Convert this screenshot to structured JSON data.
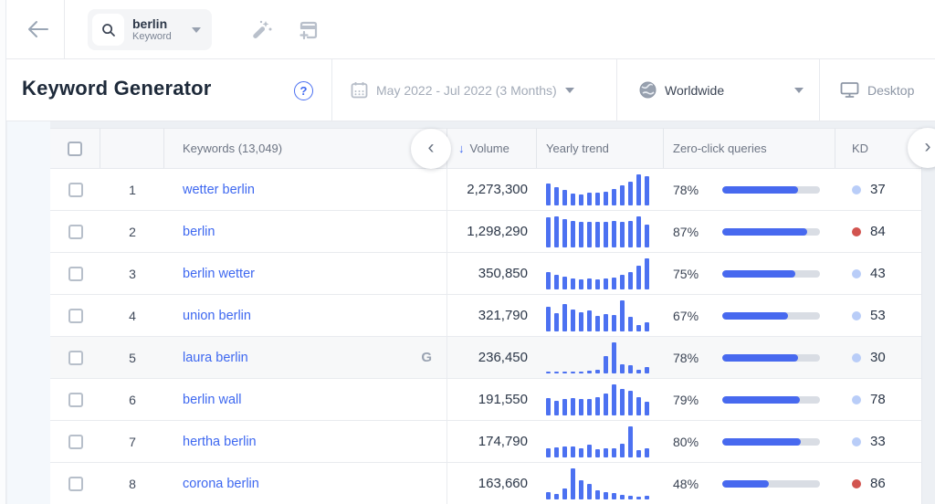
{
  "topbar": {
    "seed": {
      "query": "berlin",
      "type_label": "Keyword"
    }
  },
  "header": {
    "title": "Keyword Generator",
    "date_range": "May 2022 - Jul 2022 (3 Months)",
    "region": "Worldwide",
    "device": "Desktop"
  },
  "icons": {
    "back": "←",
    "help": "?",
    "sort_desc": "↓",
    "scroll_left": "‹",
    "scroll_right": "›",
    "serp_feature": "G"
  },
  "colors": {
    "accent": "#3f69f0",
    "trend_bar": "#4c71f1",
    "progress_fill": "#4769ef",
    "progress_track": "#d9dde4",
    "kd_easy_dot": "#b9cdf8",
    "kd_hard_dot": "#d2544f"
  },
  "table": {
    "columns": {
      "keywords": "Keywords (13,049)",
      "volume": "Volume",
      "trend": "Yearly trend",
      "zero_click": "Zero-click queries",
      "kd": "KD"
    },
    "rows": [
      {
        "rank": 1,
        "keyword": "wetter berlin",
        "volume": "2,273,300",
        "trend": [
          0.72,
          0.58,
          0.5,
          0.38,
          0.36,
          0.4,
          0.4,
          0.44,
          0.52,
          0.64,
          0.76,
          1.0,
          0.94
        ],
        "zero_click_pct": 78,
        "kd": 37,
        "kd_level": "easy",
        "serp_icon": false,
        "highlighted": false
      },
      {
        "rank": 2,
        "keyword": "berlin",
        "volume": "1,298,290",
        "trend": [
          0.96,
          1.0,
          0.9,
          0.86,
          0.82,
          0.82,
          0.82,
          0.82,
          0.86,
          0.82,
          0.86,
          1.0,
          0.74
        ],
        "zero_click_pct": 87,
        "kd": 84,
        "kd_level": "hard",
        "serp_icon": false,
        "highlighted": false
      },
      {
        "rank": 3,
        "keyword": "berlin wetter",
        "volume": "350,850",
        "trend": [
          0.55,
          0.48,
          0.4,
          0.34,
          0.32,
          0.34,
          0.32,
          0.34,
          0.38,
          0.46,
          0.56,
          0.76,
          1.0
        ],
        "zero_click_pct": 75,
        "kd": 43,
        "kd_level": "easy",
        "serp_icon": false,
        "highlighted": false
      },
      {
        "rank": 4,
        "keyword": "union berlin",
        "volume": "321,790",
        "trend": [
          0.78,
          0.6,
          0.88,
          0.7,
          0.62,
          0.68,
          0.5,
          0.56,
          0.52,
          1.0,
          0.48,
          0.22,
          0.3
        ],
        "zero_click_pct": 67,
        "kd": 53,
        "kd_level": "easy",
        "serp_icon": false,
        "highlighted": false
      },
      {
        "rank": 5,
        "keyword": "laura berlin",
        "volume": "236,450",
        "trend": [
          0.07,
          0.07,
          0.07,
          0.06,
          0.07,
          0.08,
          0.12,
          0.55,
          1.0,
          0.3,
          0.25,
          0.12,
          0.2
        ],
        "zero_click_pct": 78,
        "kd": 30,
        "kd_level": "easy",
        "serp_icon": true,
        "highlighted": true
      },
      {
        "rank": 6,
        "keyword": "berlin wall",
        "volume": "191,550",
        "trend": [
          0.56,
          0.48,
          0.52,
          0.56,
          0.52,
          0.52,
          0.6,
          0.72,
          1.0,
          0.84,
          0.8,
          0.6,
          0.44
        ],
        "zero_click_pct": 79,
        "kd": 78,
        "kd_level": "easy",
        "serp_icon": false,
        "highlighted": false
      },
      {
        "rank": 7,
        "keyword": "hertha berlin",
        "volume": "174,790",
        "trend": [
          0.3,
          0.32,
          0.35,
          0.35,
          0.28,
          0.4,
          0.26,
          0.3,
          0.3,
          0.45,
          1.0,
          0.24,
          0.3
        ],
        "zero_click_pct": 80,
        "kd": 33,
        "kd_level": "easy",
        "serp_icon": false,
        "highlighted": false
      },
      {
        "rank": 8,
        "keyword": "corona berlin",
        "volume": "163,660",
        "trend": [
          0.24,
          0.18,
          0.34,
          1.0,
          0.62,
          0.5,
          0.28,
          0.24,
          0.2,
          0.14,
          0.12,
          0.1,
          0.12
        ],
        "zero_click_pct": 48,
        "kd": 86,
        "kd_level": "hard",
        "serp_icon": false,
        "highlighted": false
      }
    ]
  }
}
